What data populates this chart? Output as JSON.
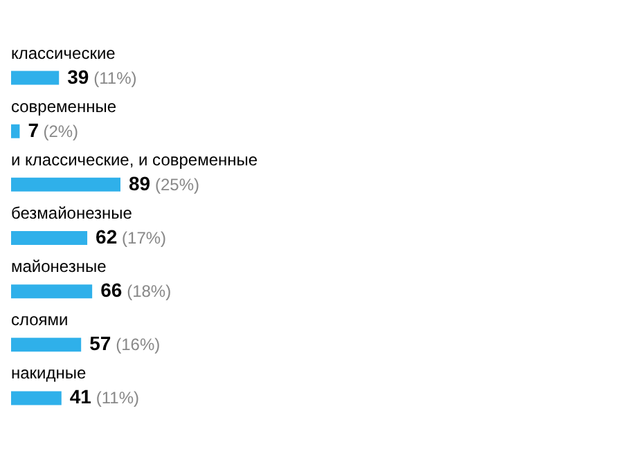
{
  "chart_data": {
    "type": "bar",
    "orientation": "horizontal",
    "color": "#2fb0ea",
    "data_labels": true,
    "categories": [
      "классические",
      "современные",
      "и классические, и современные",
      "безмайонезные",
      "майонезные",
      "слоями",
      "накидные"
    ],
    "values": [
      39,
      7,
      89,
      62,
      66,
      57,
      41
    ],
    "annotations": [
      {
        "text": "(11%)",
        "x": 39,
        "y": "классические"
      },
      {
        "text": "(2%)",
        "x": 7,
        "y": "современные"
      },
      {
        "text": "(25%)",
        "x": 89,
        "y": "и классические, и современные"
      },
      {
        "text": "(17%)",
        "x": 62,
        "y": "безмайонезные"
      },
      {
        "text": "(18%)",
        "x": 66,
        "y": "майонезные"
      },
      {
        "text": "(16%)",
        "x": 57,
        "y": "слоями"
      },
      {
        "text": "(11%)",
        "x": 41,
        "y": "накидные"
      }
    ]
  }
}
